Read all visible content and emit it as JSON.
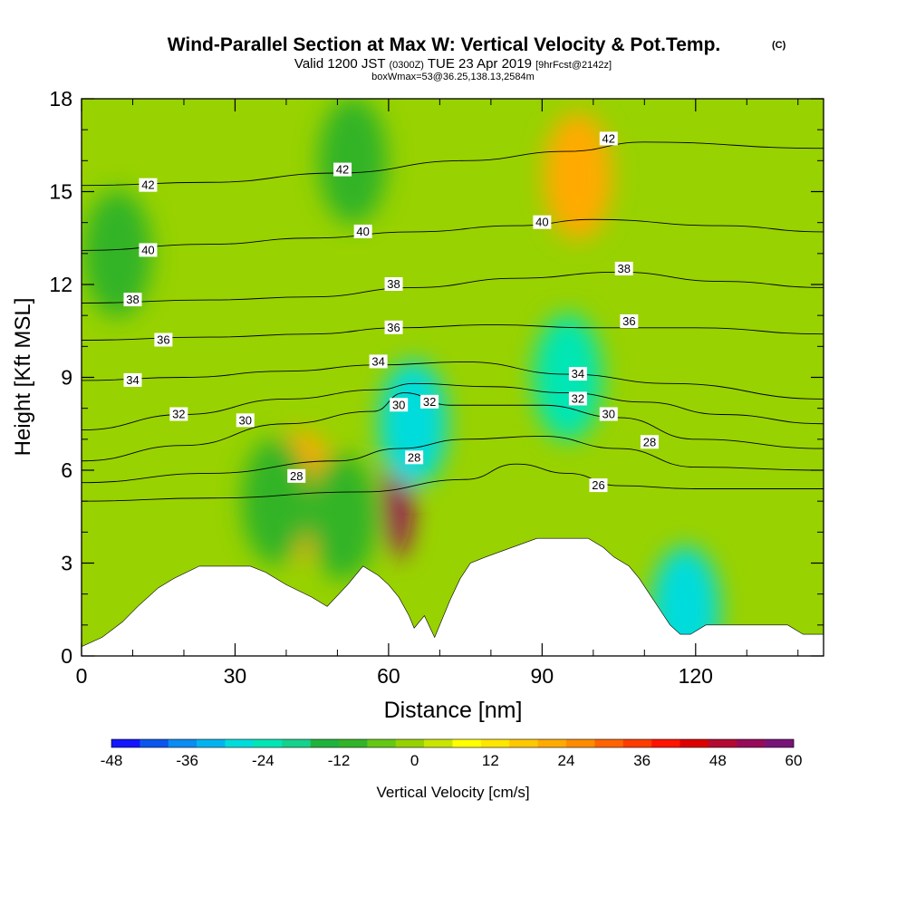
{
  "chart_data": {
    "type": "heatmap",
    "title": "Wind-Parallel Section at Max W: Vertical Velocity & Pot.Temp.",
    "title_mark": "(C)",
    "subtitle_parts": [
      "Valid 1200 JST",
      "(0300Z)",
      "TUE 23 Apr 2019",
      "[9hrFcst@2142z]"
    ],
    "subsubtitle": "boxWmax=53@36.25,138.13,2584m",
    "xlabel": "Distance [nm]",
    "ylabel": "Height [Kft MSL]",
    "xlim": [
      0,
      145
    ],
    "ylim": [
      0,
      18
    ],
    "xticks": [
      0,
      30,
      60,
      90,
      120
    ],
    "xtick_labels": [
      "0",
      "30",
      "60",
      "90",
      "120"
    ],
    "yticks": [
      0,
      3,
      6,
      9,
      12,
      15,
      18
    ],
    "ytick_labels": [
      "0",
      "3",
      "6",
      "9",
      "12",
      "15",
      "18"
    ],
    "colorbar": {
      "label": "Vertical Velocity [cm/s]",
      "min": -48,
      "max": 60,
      "tick_values": [
        -48,
        -36,
        -24,
        -12,
        0,
        12,
        24,
        36,
        48,
        60
      ],
      "tick_labels": [
        "-48",
        "-36",
        "-24",
        "-12",
        "0",
        "12",
        "24",
        "36",
        "48",
        "60"
      ],
      "colors": [
        "#1414ff",
        "#0a55ee",
        "#0a8cf0",
        "#00b4f0",
        "#00dcdc",
        "#00e6b4",
        "#14d28c",
        "#1eb43c",
        "#32b428",
        "#64c814",
        "#96d200",
        "#c8e600",
        "#ffff00",
        "#ffe600",
        "#ffc800",
        "#ffaa00",
        "#ff8c00",
        "#ff6400",
        "#ff3c00",
        "#ff1400",
        "#dc0000",
        "#b40a32",
        "#960a5a",
        "#781478"
      ]
    },
    "terrain_height_kft": [
      [
        0,
        0.3
      ],
      [
        4,
        0.6
      ],
      [
        8,
        1.1
      ],
      [
        11,
        1.6
      ],
      [
        13,
        1.9
      ],
      [
        15,
        2.2
      ],
      [
        18,
        2.5
      ],
      [
        23,
        2.9
      ],
      [
        33,
        2.9
      ],
      [
        36,
        2.7
      ],
      [
        40,
        2.3
      ],
      [
        45,
        1.9
      ],
      [
        48,
        1.6
      ],
      [
        52,
        2.3
      ],
      [
        55,
        2.9
      ],
      [
        58,
        2.6
      ],
      [
        60,
        2.3
      ],
      [
        62,
        1.9
      ],
      [
        64,
        1.3
      ],
      [
        65,
        0.9
      ],
      [
        67,
        1.3
      ],
      [
        69,
        0.6
      ],
      [
        72,
        1.8
      ],
      [
        74,
        2.5
      ],
      [
        76,
        3.0
      ],
      [
        79,
        3.2
      ],
      [
        84,
        3.5
      ],
      [
        89,
        3.8
      ],
      [
        99,
        3.8
      ],
      [
        102,
        3.5
      ],
      [
        104,
        3.2
      ],
      [
        107,
        2.9
      ],
      [
        109,
        2.5
      ],
      [
        111,
        2.0
      ],
      [
        113,
        1.5
      ],
      [
        115,
        1.0
      ],
      [
        117,
        0.7
      ],
      [
        119,
        0.7
      ],
      [
        122,
        1.0
      ],
      [
        130,
        1.0
      ],
      [
        138,
        1.0
      ],
      [
        141,
        0.7
      ],
      [
        145,
        0.7
      ]
    ],
    "velocity_features": [
      {
        "x": 62,
        "y": 5.5,
        "value": 55
      },
      {
        "x": 64.8,
        "y": 7.5,
        "value": -30
      },
      {
        "x": 43,
        "y": 5.2,
        "value": 20
      },
      {
        "x": 97,
        "y": 15.5,
        "value": 20
      },
      {
        "x": 38,
        "y": 5.0,
        "value": -12
      },
      {
        "x": 51,
        "y": 4.5,
        "value": -12
      },
      {
        "x": 95,
        "y": 9.0,
        "value": -24
      },
      {
        "x": 118,
        "y": 1.5,
        "value": -30
      },
      {
        "x": 53,
        "y": 16.0,
        "value": -12
      },
      {
        "x": 7,
        "y": 13.0,
        "value": -9
      }
    ],
    "isentropes": [
      {
        "value": 26,
        "label": "26",
        "points": [
          [
            0,
            5.0
          ],
          [
            25,
            5.1
          ],
          [
            55,
            5.3
          ],
          [
            75,
            5.7
          ],
          [
            85,
            6.2
          ],
          [
            95,
            5.9
          ],
          [
            105,
            5.5
          ],
          [
            120,
            5.4
          ],
          [
            145,
            5.4
          ]
        ]
      },
      {
        "value": 28,
        "label": "28",
        "points": [
          [
            0,
            5.6
          ],
          [
            25,
            5.9
          ],
          [
            50,
            6.3
          ],
          [
            62,
            6.7
          ],
          [
            75,
            7.0
          ],
          [
            90,
            7.1
          ],
          [
            105,
            6.7
          ],
          [
            120,
            6.1
          ],
          [
            145,
            6.0
          ]
        ]
      },
      {
        "value": 30,
        "label": "30",
        "points": [
          [
            0,
            6.3
          ],
          [
            20,
            6.8
          ],
          [
            40,
            7.5
          ],
          [
            57,
            7.9
          ],
          [
            63,
            8.5
          ],
          [
            72,
            8.1
          ],
          [
            90,
            8.1
          ],
          [
            105,
            7.7
          ],
          [
            120,
            7.0
          ],
          [
            145,
            6.7
          ]
        ]
      },
      {
        "value": 32,
        "label": "32",
        "points": [
          [
            0,
            7.3
          ],
          [
            20,
            7.8
          ],
          [
            40,
            8.3
          ],
          [
            58,
            8.6
          ],
          [
            65,
            8.8
          ],
          [
            80,
            8.7
          ],
          [
            95,
            8.5
          ],
          [
            110,
            8.2
          ],
          [
            125,
            7.8
          ],
          [
            145,
            7.5
          ]
        ]
      },
      {
        "value": 34,
        "label": "34",
        "points": [
          [
            0,
            8.9
          ],
          [
            20,
            9.0
          ],
          [
            40,
            9.2
          ],
          [
            58,
            9.4
          ],
          [
            75,
            9.5
          ],
          [
            95,
            9.1
          ],
          [
            115,
            8.8
          ],
          [
            145,
            8.3
          ]
        ]
      },
      {
        "value": 36,
        "label": "36",
        "points": [
          [
            0,
            10.2
          ],
          [
            25,
            10.3
          ],
          [
            45,
            10.4
          ],
          [
            62,
            10.6
          ],
          [
            80,
            10.7
          ],
          [
            100,
            10.6
          ],
          [
            120,
            10.6
          ],
          [
            145,
            10.4
          ]
        ]
      },
      {
        "value": 38,
        "label": "38",
        "points": [
          [
            0,
            11.4
          ],
          [
            25,
            11.5
          ],
          [
            45,
            11.6
          ],
          [
            65,
            11.9
          ],
          [
            85,
            12.2
          ],
          [
            105,
            12.4
          ],
          [
            125,
            12.1
          ],
          [
            145,
            11.9
          ]
        ]
      },
      {
        "value": 40,
        "label": "40",
        "points": [
          [
            0,
            13.1
          ],
          [
            25,
            13.3
          ],
          [
            45,
            13.5
          ],
          [
            65,
            13.7
          ],
          [
            85,
            13.9
          ],
          [
            100,
            14.1
          ],
          [
            125,
            13.9
          ],
          [
            145,
            13.7
          ]
        ]
      },
      {
        "value": 42,
        "label": "42",
        "points": [
          [
            0,
            15.2
          ],
          [
            25,
            15.3
          ],
          [
            50,
            15.6
          ],
          [
            75,
            16.0
          ],
          [
            95,
            16.3
          ],
          [
            110,
            16.6
          ],
          [
            145,
            16.4
          ]
        ]
      }
    ],
    "contour_labels": [
      {
        "x": 13,
        "y": 15.2,
        "text": "42"
      },
      {
        "x": 51,
        "y": 15.7,
        "text": "42"
      },
      {
        "x": 103,
        "y": 16.7,
        "text": "42"
      },
      {
        "x": 13,
        "y": 13.1,
        "text": "40"
      },
      {
        "x": 55,
        "y": 13.7,
        "text": "40"
      },
      {
        "x": 90,
        "y": 14.0,
        "text": "40"
      },
      {
        "x": 10,
        "y": 11.5,
        "text": "38"
      },
      {
        "x": 61,
        "y": 12.0,
        "text": "38"
      },
      {
        "x": 106,
        "y": 12.5,
        "text": "38"
      },
      {
        "x": 16,
        "y": 10.2,
        "text": "36"
      },
      {
        "x": 61,
        "y": 10.6,
        "text": "36"
      },
      {
        "x": 107,
        "y": 10.8,
        "text": "36"
      },
      {
        "x": 10,
        "y": 8.9,
        "text": "34"
      },
      {
        "x": 58,
        "y": 9.5,
        "text": "34"
      },
      {
        "x": 97,
        "y": 9.1,
        "text": "34"
      },
      {
        "x": 19,
        "y": 7.8,
        "text": "32"
      },
      {
        "x": 68,
        "y": 8.2,
        "text": "32"
      },
      {
        "x": 97,
        "y": 8.3,
        "text": "32"
      },
      {
        "x": 32,
        "y": 7.6,
        "text": "30"
      },
      {
        "x": 62,
        "y": 8.1,
        "text": "30"
      },
      {
        "x": 103,
        "y": 7.8,
        "text": "30"
      },
      {
        "x": 42,
        "y": 5.8,
        "text": "28"
      },
      {
        "x": 65,
        "y": 6.4,
        "text": "28"
      },
      {
        "x": 111,
        "y": 6.9,
        "text": "28"
      },
      {
        "x": 101,
        "y": 5.5,
        "text": "26"
      }
    ]
  }
}
